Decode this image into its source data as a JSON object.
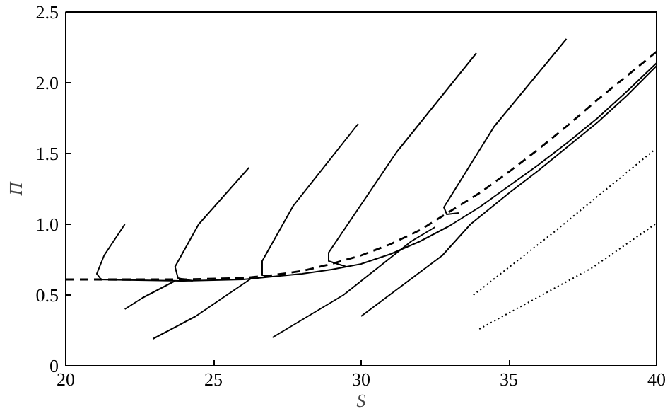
{
  "chart_data": {
    "type": "line",
    "xlabel": "S",
    "ylabel": "Π",
    "xlim": [
      20,
      40
    ],
    "ylim": [
      0,
      2.5
    ],
    "xticks": [
      20,
      25,
      30,
      35,
      40
    ],
    "yticks": [
      0,
      {
        "value": 0.5,
        "label": "0.5"
      },
      {
        "value": 1,
        "label": "1.0"
      },
      {
        "value": 1.5,
        "label": "1.5"
      },
      {
        "value": 2,
        "label": "2.0"
      },
      {
        "value": 2.5,
        "label": "2.5"
      }
    ],
    "grid": false,
    "marker": "none",
    "series": [
      {
        "color": "#000000",
        "line_style": "dashed",
        "x": [
          20,
          24,
          26,
          27,
          28,
          29,
          30,
          31,
          32,
          33,
          34,
          35,
          36,
          37,
          38,
          39,
          40
        ],
        "values": [
          0.61,
          0.61,
          0.62,
          0.64,
          0.67,
          0.72,
          0.78,
          0.86,
          0.96,
          1.09,
          1.22,
          1.37,
          1.53,
          1.7,
          1.88,
          2.05,
          2.22
        ]
      },
      {
        "color": "#000000",
        "line_style": "solid",
        "x": [
          21,
          24,
          26,
          27,
          28,
          29,
          30,
          31,
          32,
          33,
          34,
          35,
          36,
          37,
          38,
          39,
          40
        ],
        "values": [
          0.61,
          0.6,
          0.61,
          0.63,
          0.65,
          0.68,
          0.72,
          0.79,
          0.88,
          0.99,
          1.12,
          1.27,
          1.42,
          1.58,
          1.75,
          1.94,
          2.14
        ]
      },
      {
        "color": "#000000",
        "line_style": "solid",
        "x": [
          22,
          21.3,
          21.05,
          21.2
        ],
        "values": [
          1.0,
          0.78,
          0.65,
          0.61
        ]
      },
      {
        "color": "#000000",
        "line_style": "solid",
        "x": [
          26.2,
          24.5,
          23.7,
          23.8,
          24.3
        ],
        "values": [
          1.4,
          1.0,
          0.7,
          0.62,
          0.6
        ]
      },
      {
        "color": "#000000",
        "line_style": "solid",
        "x": [
          29.9,
          27.7,
          26.65,
          26.65,
          27.0
        ],
        "values": [
          1.71,
          1.13,
          0.74,
          0.64,
          0.63
        ]
      },
      {
        "color": "#000000",
        "line_style": "solid",
        "x": [
          33.9,
          31.2,
          28.9,
          28.9,
          29.5
        ],
        "values": [
          2.21,
          1.51,
          0.8,
          0.74,
          0.7
        ]
      },
      {
        "color": "#000000",
        "line_style": "solid",
        "x": [
          36.95,
          34.5,
          32.8,
          32.9,
          33.3
        ],
        "values": [
          2.31,
          1.69,
          1.12,
          1.07,
          1.08
        ]
      },
      {
        "color": "#000000",
        "line_style": "solid",
        "x": [
          22,
          22.6,
          23.7
        ],
        "values": [
          0.4,
          0.48,
          0.6
        ]
      },
      {
        "color": "#000000",
        "line_style": "solid",
        "x": [
          22.95,
          24.4,
          26.3
        ],
        "values": [
          0.19,
          0.35,
          0.62
        ]
      },
      {
        "color": "#000000",
        "line_style": "solid",
        "x": [
          27.0,
          29.4,
          31.7,
          32.5
        ],
        "values": [
          0.2,
          0.5,
          0.88,
          0.98
        ]
      },
      {
        "color": "#000000",
        "line_style": "solid",
        "x": [
          30.0,
          32.75,
          33.7,
          35,
          36,
          37,
          38,
          39,
          40
        ],
        "values": [
          0.35,
          0.78,
          1.0,
          1.22,
          1.38,
          1.55,
          1.72,
          1.91,
          2.12
        ]
      },
      {
        "color": "#000000",
        "line_style": "dotted",
        "x": [
          33.8,
          36.5,
          39.95
        ],
        "values": [
          0.5,
          0.94,
          1.53
        ]
      },
      {
        "color": "#000000",
        "line_style": "dotted",
        "x": [
          34.0,
          37.8,
          39.95
        ],
        "values": [
          0.26,
          0.69,
          1.0
        ]
      }
    ]
  }
}
